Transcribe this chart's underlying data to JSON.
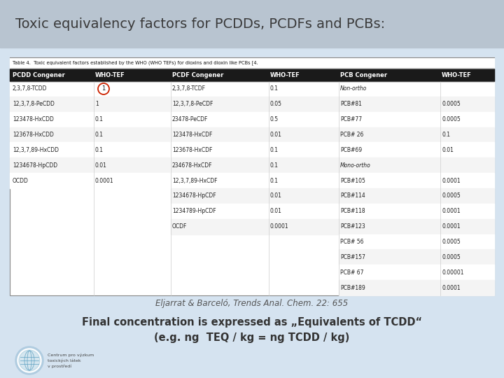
{
  "title": "Toxic equivalency factors for PCDDs, PCDFs and PCBs:",
  "table_caption": "Table 4.  Toxic equivalent factors established by the WHO (WHO TEFs) for dioxins and dioxin like PCBs [4.",
  "col_headers": [
    "PCDD Congener",
    "WHO-TEF",
    "PCDF Congener",
    "WHO-TEF",
    "PCB Congener",
    "WHO-TEF"
  ],
  "pcdd_rows": [
    [
      "2,3,7,8-TCDD",
      "1"
    ],
    [
      "12,3,7,8-PeCDD",
      "1"
    ],
    [
      "123478-HxCDD",
      "0.1"
    ],
    [
      "123678-HxCDD",
      "0.1"
    ],
    [
      "12,3,7,89-HxCDD",
      "0.1"
    ],
    [
      "1234678-HpCDD",
      "0.01"
    ],
    [
      "OCDD",
      "0.0001"
    ]
  ],
  "pcdf_rows": [
    [
      "2,3,7,8-TCDF",
      "0.1"
    ],
    [
      "12,3,7,8-PeCDF",
      "0.05"
    ],
    [
      "23478-PeCDF",
      "0.5"
    ],
    [
      "123478-HxCDF",
      "0.01"
    ],
    [
      "123678-HxCDF",
      "0.1"
    ],
    [
      "234678-HxCDF",
      "0.1"
    ],
    [
      "12,3,7,89-HxCDF",
      "0.1"
    ],
    [
      "1234678-HpCDF",
      "0.01"
    ],
    [
      "1234789-HpCDF",
      "0.01"
    ],
    [
      "OCDF",
      "0.0001"
    ]
  ],
  "pcb_rows": [
    [
      "Non-ortho",
      ""
    ],
    [
      "PCB#81",
      "0.0005"
    ],
    [
      "PCB#77",
      "0.0005"
    ],
    [
      "PCB# 26",
      "0.1"
    ],
    [
      "PCB#69",
      "0.01"
    ],
    [
      "Mono-ortho",
      ""
    ],
    [
      "PCB#105",
      "0.0001"
    ],
    [
      "PCB#114",
      "0.0005"
    ],
    [
      "PCB#118",
      "0.0001"
    ],
    [
      "PCB#123",
      "0.0001"
    ],
    [
      "PCB# 56",
      "0.0005"
    ],
    [
      "PCB#157",
      "0.0005"
    ],
    [
      "PCB# 67",
      "0.00001"
    ],
    [
      "PCB#189",
      "0.0001"
    ]
  ],
  "citation": "Eljarrat & Barceló, Trends Anal. Chem. 22: 655",
  "bottom_text_line1": "Final concentration is expressed as „Equivalents of TCDD“",
  "bottom_text_line2": "(e.g. ng  TEQ / kg = ng TCDD / kg)"
}
